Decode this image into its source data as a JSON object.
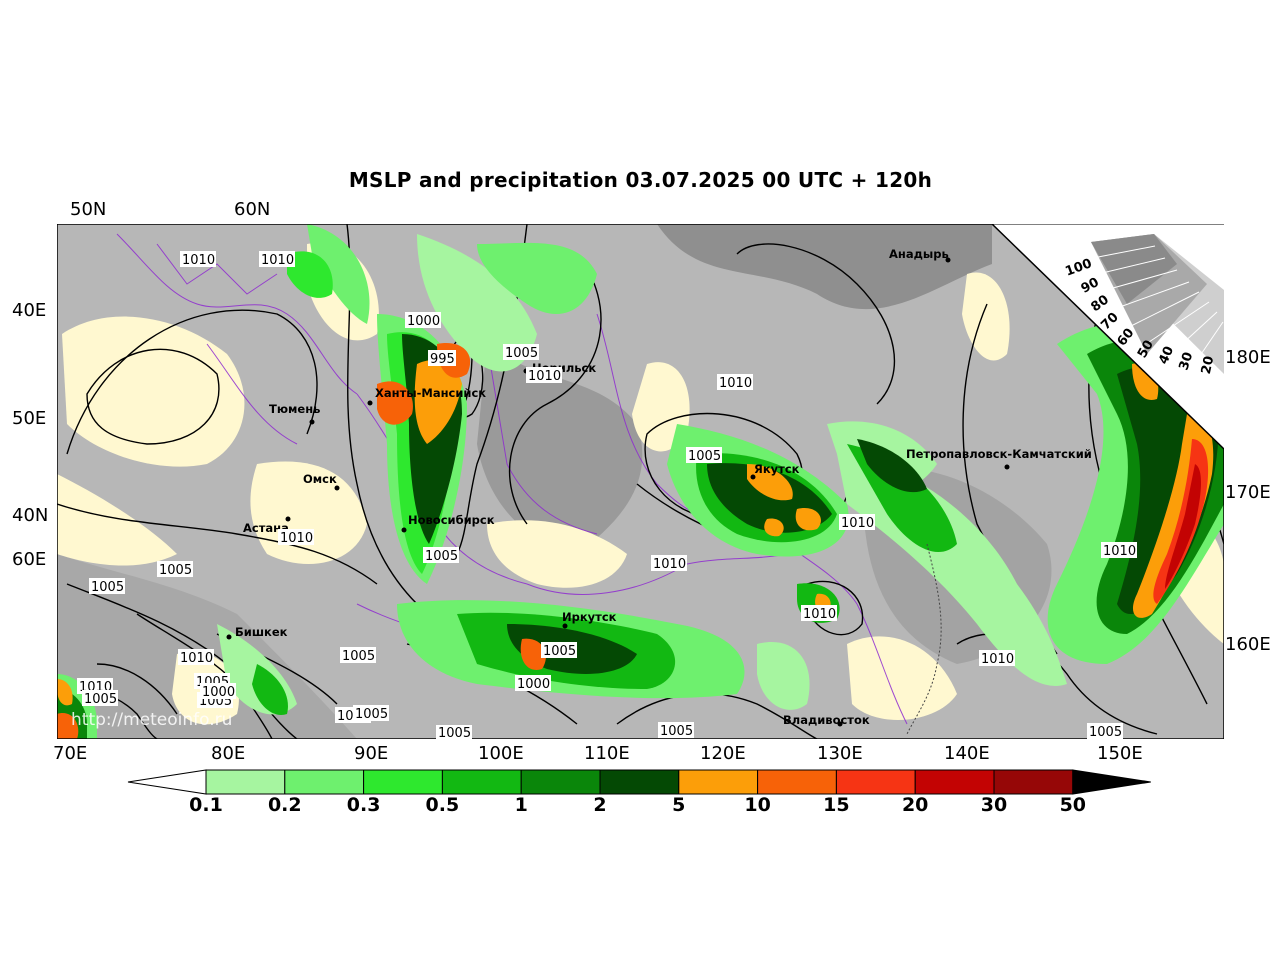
{
  "title": "MSLP and precipitation 03.07.2025 00 UTC + 120h",
  "credit": "http://meteoinfo.ru",
  "lat_labels_top": [
    "50N",
    "60N"
  ],
  "lon_labels_left": [
    "40E",
    "50E",
    "40N",
    "60E"
  ],
  "lon_labels_bottom": [
    "70E",
    "80E",
    "90E",
    "100E",
    "110E",
    "120E",
    "130E",
    "140E",
    "150E"
  ],
  "lon_labels_right": [
    "180E",
    "170E",
    "160E"
  ],
  "cities": [
    "Анадырь",
    "Норильск",
    "Ханты-Мансийск",
    "Тюмень",
    "Омск",
    "Астана",
    "Новосибирск",
    "Якутск",
    "Петропавловск-Камчатский",
    "Бишкек",
    "Иркутск",
    "Владивосток"
  ],
  "isobars": [
    "1010",
    "1010",
    "1000",
    "995",
    "1005",
    "1010",
    "1010",
    "1005",
    "1010",
    "1005",
    "1010",
    "1010",
    "1005",
    "1005",
    "1010",
    "1010",
    "1005",
    "1000",
    "1005",
    "1005",
    "1010",
    "1005",
    "1010",
    "1005",
    "1000",
    "1010",
    "1005",
    "1005",
    "1005",
    "1010",
    "1005"
  ],
  "wind_scale": [
    "100",
    "90",
    "80",
    "70",
    "60",
    "50",
    "40",
    "30",
    "20"
  ],
  "colorbar": {
    "labels": [
      "0.1",
      "0.2",
      "0.3",
      "0.5",
      "1",
      "2",
      "5",
      "10",
      "15",
      "20",
      "30",
      "50"
    ],
    "colors": [
      "#a6f5a0",
      "#6ef06e",
      "#2ee82e",
      "#12b812",
      "#0a860a",
      "#044904",
      "#fc9e09",
      "#f76208",
      "#f63414",
      "#c30303",
      "#960707"
    ],
    "min_color": "#ffffff",
    "max_color": "#000000"
  },
  "colors": {
    "land_cream": "#fff8d0",
    "cloud_grey": "#9a9a9a",
    "border_purple": "#8e2bd0"
  }
}
